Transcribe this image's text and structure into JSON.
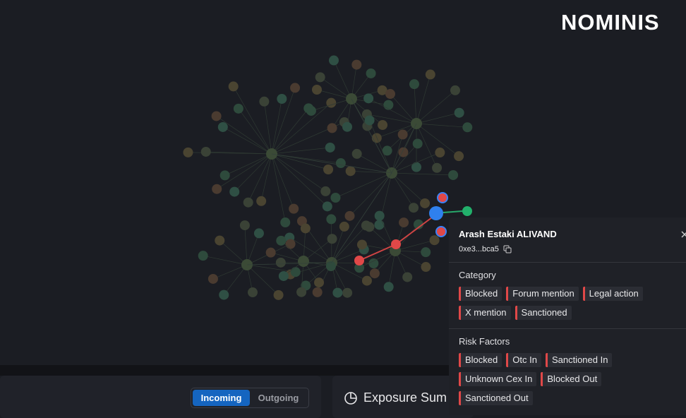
{
  "logo": "NOMINIS",
  "popup": {
    "name": "Arash Estaki ALIVAND",
    "address": "0xe3...bca5",
    "category_heading": "Category",
    "categories": [
      "Blocked",
      "Forum mention",
      "Legal action",
      "X mention",
      "Sanctioned"
    ],
    "risk_heading": "Risk Factors",
    "risk_factors": [
      "Blocked",
      "Otc In",
      "Sanctioned In",
      "Unknown Cex In",
      "Blocked Out",
      "Sanctioned Out"
    ]
  },
  "tabs": [
    "Incoming",
    "Outgoing"
  ],
  "exposure_title": "Exposure Sum"
}
